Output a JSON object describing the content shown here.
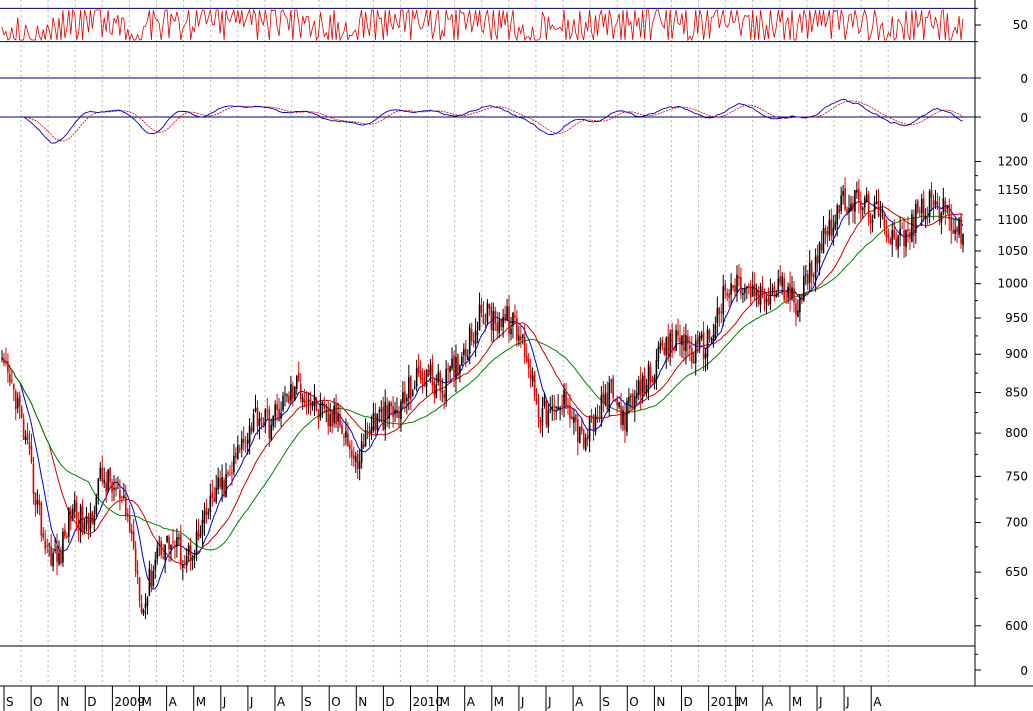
{
  "chart_data": {
    "type": "candlestick",
    "price_axis": {
      "ticks": [
        600,
        650,
        700,
        750,
        800,
        850,
        900,
        950,
        1000,
        1050,
        1100,
        1150,
        1200
      ],
      "scale": "log",
      "range": [
        560,
        1210
      ]
    },
    "rsi_panel": {
      "tick_labels": [
        "50"
      ],
      "levels": [
        30,
        70
      ],
      "range": [
        20,
        80
      ]
    },
    "zero_panel": {
      "tick_labels": [
        "0"
      ]
    },
    "macd_panel": {
      "tick_labels": [
        "0"
      ]
    },
    "volume_panel": {
      "tick_labels": [
        "0"
      ]
    },
    "x_axis": {
      "labels": [
        "S",
        "O",
        "N",
        "D",
        "2009",
        "M",
        "A",
        "M",
        "J",
        "J",
        "A",
        "S",
        "O",
        "N",
        "D",
        "2010",
        "M",
        "A",
        "M",
        "J",
        "J",
        "A",
        "S",
        "O",
        "N",
        "D",
        "2011",
        "M",
        "A",
        "M",
        "J",
        "J",
        "A"
      ]
    },
    "anchors": [
      {
        "t": 0,
        "close": 880
      },
      {
        "t": 1,
        "close": 845
      },
      {
        "t": 2,
        "close": 760
      },
      {
        "t": 3,
        "close": 680
      },
      {
        "t": 4,
        "close": 660
      },
      {
        "t": 5,
        "close": 720
      },
      {
        "t": 6,
        "close": 690
      },
      {
        "t": 7,
        "close": 750
      },
      {
        "t": 8,
        "close": 735
      },
      {
        "t": 9,
        "close": 700
      },
      {
        "t": 10,
        "close": 615
      },
      {
        "t": 11,
        "close": 675
      },
      {
        "t": 12,
        "close": 680
      },
      {
        "t": 13,
        "close": 665
      },
      {
        "t": 14,
        "close": 685
      },
      {
        "t": 15,
        "close": 730
      },
      {
        "t": 16,
        "close": 745
      },
      {
        "t": 17,
        "close": 790
      },
      {
        "t": 18,
        "close": 825
      },
      {
        "t": 19,
        "close": 810
      },
      {
        "t": 20,
        "close": 840
      },
      {
        "t": 21,
        "close": 860
      },
      {
        "t": 22,
        "close": 835
      },
      {
        "t": 23,
        "close": 815
      },
      {
        "t": 24,
        "close": 820
      },
      {
        "t": 25,
        "close": 760
      },
      {
        "t": 26,
        "close": 810
      },
      {
        "t": 27,
        "close": 820
      },
      {
        "t": 28,
        "close": 825
      },
      {
        "t": 29,
        "close": 860
      },
      {
        "t": 30,
        "close": 875
      },
      {
        "t": 31,
        "close": 855
      },
      {
        "t": 32,
        "close": 880
      },
      {
        "t": 33,
        "close": 920
      },
      {
        "t": 34,
        "close": 955
      },
      {
        "t": 35,
        "close": 950
      },
      {
        "t": 36,
        "close": 945
      },
      {
        "t": 37,
        "close": 910
      },
      {
        "t": 38,
        "close": 830
      },
      {
        "t": 39,
        "close": 820
      },
      {
        "t": 40,
        "close": 845
      },
      {
        "t": 41,
        "close": 790
      },
      {
        "t": 42,
        "close": 815
      },
      {
        "t": 43,
        "close": 850
      },
      {
        "t": 44,
        "close": 820
      },
      {
        "t": 45,
        "close": 845
      },
      {
        "t": 46,
        "close": 880
      },
      {
        "t": 47,
        "close": 905
      },
      {
        "t": 48,
        "close": 925
      },
      {
        "t": 49,
        "close": 900
      },
      {
        "t": 50,
        "close": 920
      },
      {
        "t": 51,
        "close": 975
      },
      {
        "t": 52,
        "close": 1000
      },
      {
        "t": 53,
        "close": 985
      },
      {
        "t": 54,
        "close": 975
      },
      {
        "t": 55,
        "close": 1000
      },
      {
        "t": 56,
        "close": 970
      },
      {
        "t": 57,
        "close": 1005
      },
      {
        "t": 58,
        "close": 1070
      },
      {
        "t": 59,
        "close": 1110
      },
      {
        "t": 60,
        "close": 1135
      },
      {
        "t": 61,
        "close": 1125
      },
      {
        "t": 62,
        "close": 1105
      },
      {
        "t": 63,
        "close": 1080
      },
      {
        "t": 64,
        "close": 1070
      },
      {
        "t": 65,
        "close": 1120
      },
      {
        "t": 66,
        "close": 1125
      },
      {
        "t": 67,
        "close": 1105
      },
      {
        "t": 68,
        "close": 1070
      }
    ]
  }
}
